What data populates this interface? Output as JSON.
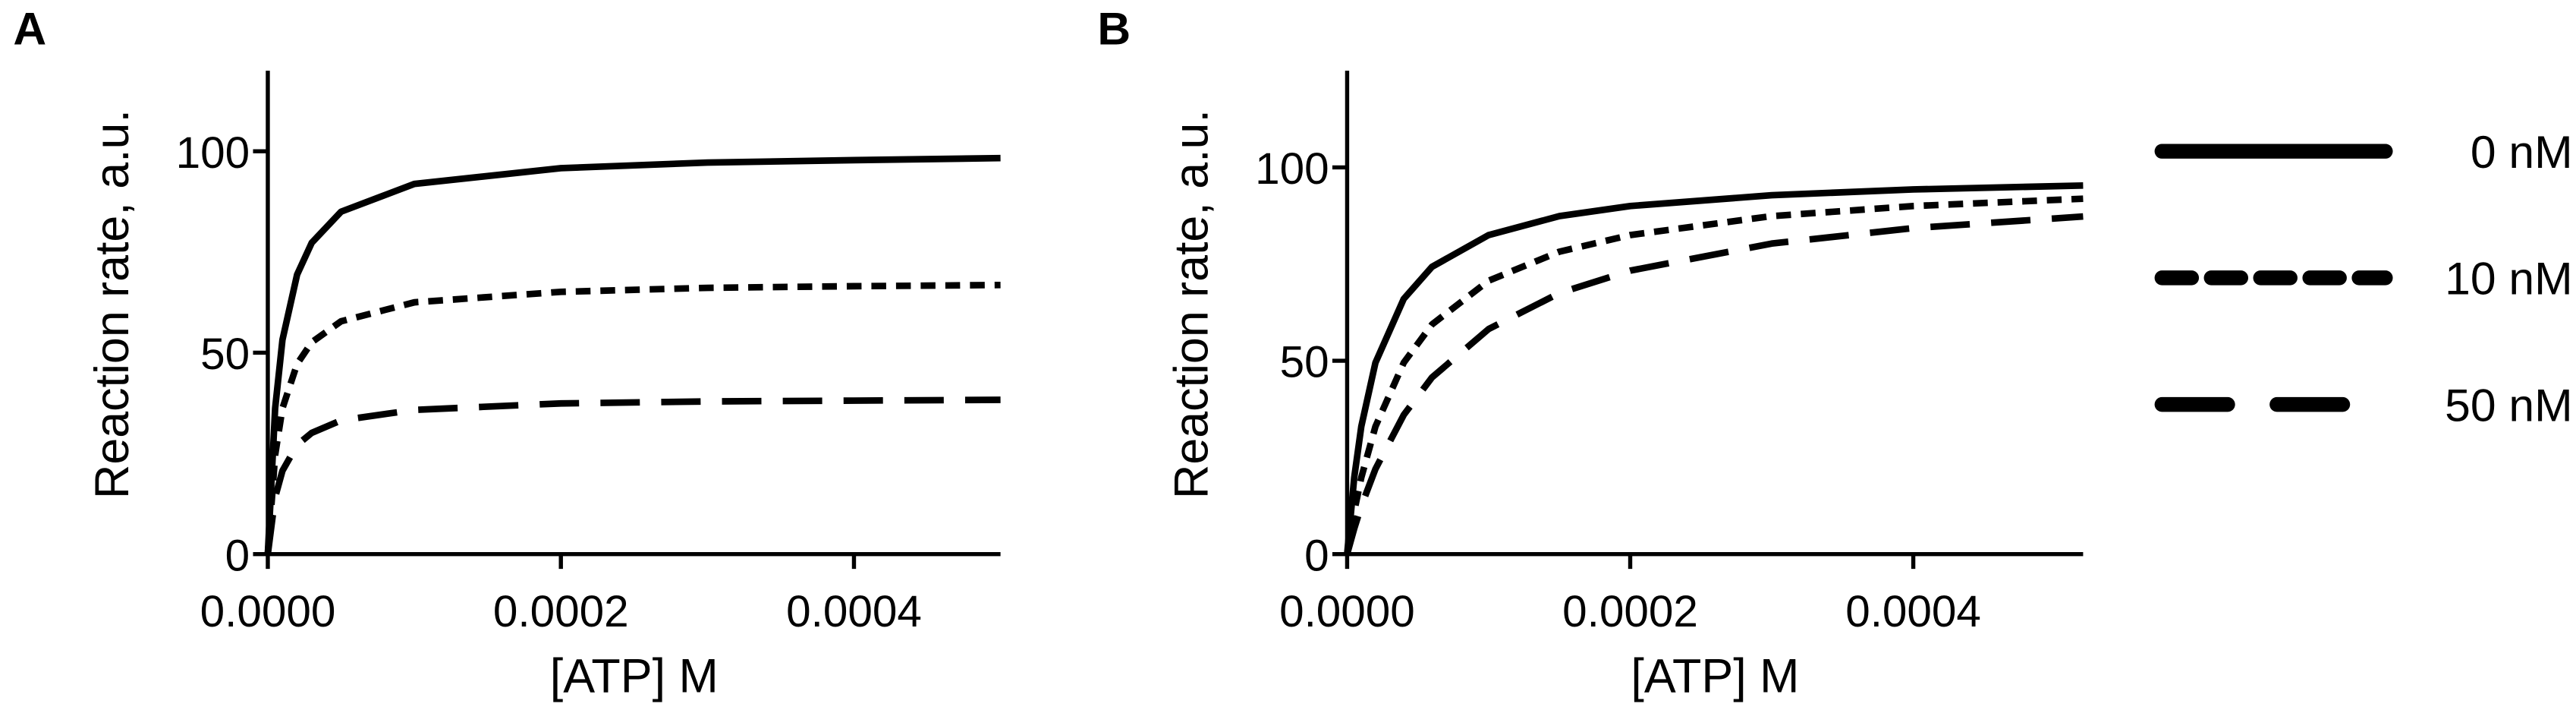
{
  "chart_data": [
    {
      "type": "line",
      "panel_label": "A",
      "x_label": "[ATP] M",
      "y_label": "Reaction rate, a.u.",
      "xlim": [
        0,
        0.0005
      ],
      "ylim": [
        0,
        120
      ],
      "xticks": [
        {
          "value": 0,
          "label": "0.0000"
        },
        {
          "value": 0.0002,
          "label": "0.0002"
        },
        {
          "value": 0.0004,
          "label": "0.0004"
        }
      ],
      "yticks": [
        0,
        50,
        100
      ],
      "x": [
        0,
        5e-06,
        1e-05,
        2e-05,
        3e-05,
        5e-05,
        0.0001,
        0.0002,
        0.0003,
        0.0004,
        0.0005
      ],
      "series": [
        {
          "color": "#000000",
          "dash": "solid",
          "values": [
            0,
            36.2,
            53.2,
            69.4,
            77.3,
            85.0,
            91.9,
            95.8,
            97.2,
            97.8,
            98.3
          ]
        },
        {
          "color": "#000000",
          "dash": "short",
          "values": [
            0,
            24.6,
            36.2,
            47.2,
            52.6,
            57.8,
            62.5,
            65.1,
            66.1,
            66.5,
            66.8
          ]
        },
        {
          "color": "#000000",
          "dash": "long",
          "values": [
            0,
            14.1,
            20.7,
            27.1,
            30.1,
            33.2,
            35.8,
            37.4,
            37.9,
            38.1,
            38.3
          ]
        }
      ]
    },
    {
      "type": "line",
      "panel_label": "B",
      "x_label": "[ATP] M",
      "y_label": "Reaction rate, a.u.",
      "xlim": [
        0,
        0.00052
      ],
      "ylim": [
        0,
        125
      ],
      "xticks": [
        {
          "value": 0,
          "label": "0.0000"
        },
        {
          "value": 0.0002,
          "label": "0.0002"
        },
        {
          "value": 0.0004,
          "label": "0.0004"
        }
      ],
      "yticks": [
        0,
        50,
        100
      ],
      "legend": "right",
      "x": [
        0,
        5e-06,
        1e-05,
        2e-05,
        4e-05,
        6e-05,
        0.0001,
        0.00015,
        0.0002,
        0.0003,
        0.0004,
        0.00052
      ],
      "series": [
        {
          "name": "0 nM",
          "color": "#000000",
          "dash": "solid",
          "values": [
            0,
            19.8,
            33.0,
            49.5,
            66.0,
            74.3,
            82.5,
            87.4,
            90.0,
            92.8,
            94.3,
            95.3
          ]
        },
        {
          "name": "10 nM",
          "color": "#000000",
          "dash": "short",
          "values": [
            0,
            11.0,
            19.8,
            33.0,
            49.5,
            59.4,
            70.7,
            78.2,
            82.5,
            87.4,
            90.0,
            91.9
          ]
        },
        {
          "name": "50 nM",
          "color": "#000000",
          "dash": "long",
          "values": [
            0,
            6.6,
            12.4,
            22.0,
            36.0,
            45.7,
            58.2,
            67.5,
            73.3,
            80.3,
            84.3,
            87.3
          ]
        }
      ]
    }
  ]
}
